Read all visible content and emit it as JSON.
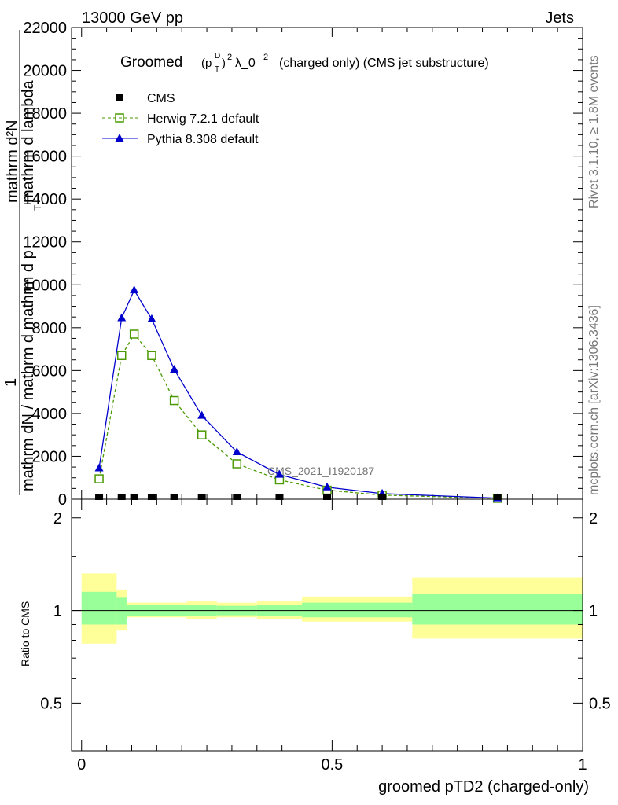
{
  "header": {
    "left": "13000 GeV pp",
    "right": "Jets",
    "side_top": "Rivet 3.1.10, ≥ 1.8M events",
    "side_bottom": "mcplots.cern.ch [arXiv:1306.3436]"
  },
  "chart_data": [
    {
      "type": "line",
      "title_prefix": "Groomed",
      "title_sym": "(p",
      "title_sup1": "D",
      "title_sub": "T",
      "title_close": ")",
      "title_sup2": "2",
      "title_mid": "λ_0",
      "title_sup3": "2",
      "title_suffix": "(charged only) (CMS jet substructure)",
      "ylabel_top": "mathrm d²N",
      "ylabel_mid": "1",
      "ylabel_bot": "mathrm dN / mathrm d mathrm d p",
      "ylabel_bot_sub": "T",
      "ylabel_bot_end": "mathrm d lambda",
      "watermark": "CMS_2021_I1920187",
      "ylim": [
        0,
        22000
      ],
      "xlim": [
        -0.02,
        1.0
      ],
      "yticks": [
        {
          "v": 0,
          "label": "0"
        },
        {
          "v": 2000,
          "label": "2000"
        },
        {
          "v": 4000,
          "label": "4000"
        },
        {
          "v": 6000,
          "label": "6000"
        },
        {
          "v": 8000,
          "label": "8000"
        },
        {
          "v": 10000,
          "label": "10000"
        },
        {
          "v": 12000,
          "label": "12000"
        },
        {
          "v": 14000,
          "label": "14000"
        },
        {
          "v": 16000,
          "label": "16000"
        },
        {
          "v": 18000,
          "label": "18000"
        },
        {
          "v": 20000,
          "label": "20000"
        },
        {
          "v": 22000,
          "label": "22000"
        }
      ],
      "legend": [
        {
          "name": "CMS"
        },
        {
          "name": "Herwig 7.2.1 default"
        },
        {
          "name": "Pythia 8.308 default"
        }
      ],
      "series": [
        {
          "name": "CMS",
          "color": "#000000",
          "x": [
            0.035,
            0.08,
            0.105,
            0.14,
            0.185,
            0.24,
            0.31,
            0.395,
            0.49,
            0.6,
            0.83
          ],
          "y": [
            35,
            45,
            50,
            45,
            40,
            30,
            20,
            12,
            6,
            3,
            1
          ]
        },
        {
          "name": "Herwig 7.2.1 default",
          "color": "#4a9a00",
          "x": [
            0.035,
            0.08,
            0.105,
            0.14,
            0.185,
            0.24,
            0.31,
            0.395,
            0.49,
            0.6,
            0.83
          ],
          "y": [
            950,
            6700,
            7700,
            6700,
            4600,
            3000,
            1650,
            900,
            420,
            190,
            40
          ]
        },
        {
          "name": "Pythia 8.308 default",
          "color": "#0000cc",
          "x": [
            0.035,
            0.08,
            0.105,
            0.14,
            0.185,
            0.24,
            0.31,
            0.395,
            0.49,
            0.6,
            0.83
          ],
          "y": [
            1450,
            8450,
            9750,
            8400,
            6050,
            3900,
            2200,
            1150,
            560,
            260,
            50
          ]
        }
      ]
    },
    {
      "type": "ratio",
      "ylabel": "Ratio to CMS",
      "xlabel": "groomed pTD2 (charged-only)",
      "ylim": [
        0.35,
        2.3
      ],
      "log": true,
      "yticks": [
        {
          "v": 0.5,
          "label": "0.5"
        },
        {
          "v": 1,
          "label": "1"
        },
        {
          "v": 2,
          "label": "2"
        }
      ],
      "xticks": [
        {
          "v": 0,
          "label": "0"
        },
        {
          "v": 0.5,
          "label": "0.5"
        },
        {
          "v": 1,
          "label": "1"
        }
      ],
      "bands": [
        {
          "x0": 0.0,
          "x1": 0.07,
          "inner": [
            0.9,
            1.15
          ],
          "outer": [
            0.78,
            1.32
          ]
        },
        {
          "x0": 0.07,
          "x1": 0.09,
          "inner": [
            0.9,
            1.1
          ],
          "outer": [
            0.86,
            1.17
          ]
        },
        {
          "x0": 0.09,
          "x1": 0.21,
          "inner": [
            0.96,
            1.04
          ],
          "outer": [
            0.95,
            1.06
          ]
        },
        {
          "x0": 0.21,
          "x1": 0.27,
          "inner": [
            0.96,
            1.04
          ],
          "outer": [
            0.94,
            1.07
          ]
        },
        {
          "x0": 0.27,
          "x1": 0.35,
          "inner": [
            0.965,
            1.035
          ],
          "outer": [
            0.95,
            1.06
          ]
        },
        {
          "x0": 0.35,
          "x1": 0.44,
          "inner": [
            0.96,
            1.04
          ],
          "outer": [
            0.94,
            1.07
          ]
        },
        {
          "x0": 0.44,
          "x1": 0.66,
          "inner": [
            0.95,
            1.06
          ],
          "outer": [
            0.92,
            1.11
          ]
        },
        {
          "x0": 0.66,
          "x1": 1.0,
          "inner": [
            0.9,
            1.13
          ],
          "outer": [
            0.81,
            1.28
          ]
        }
      ]
    }
  ]
}
